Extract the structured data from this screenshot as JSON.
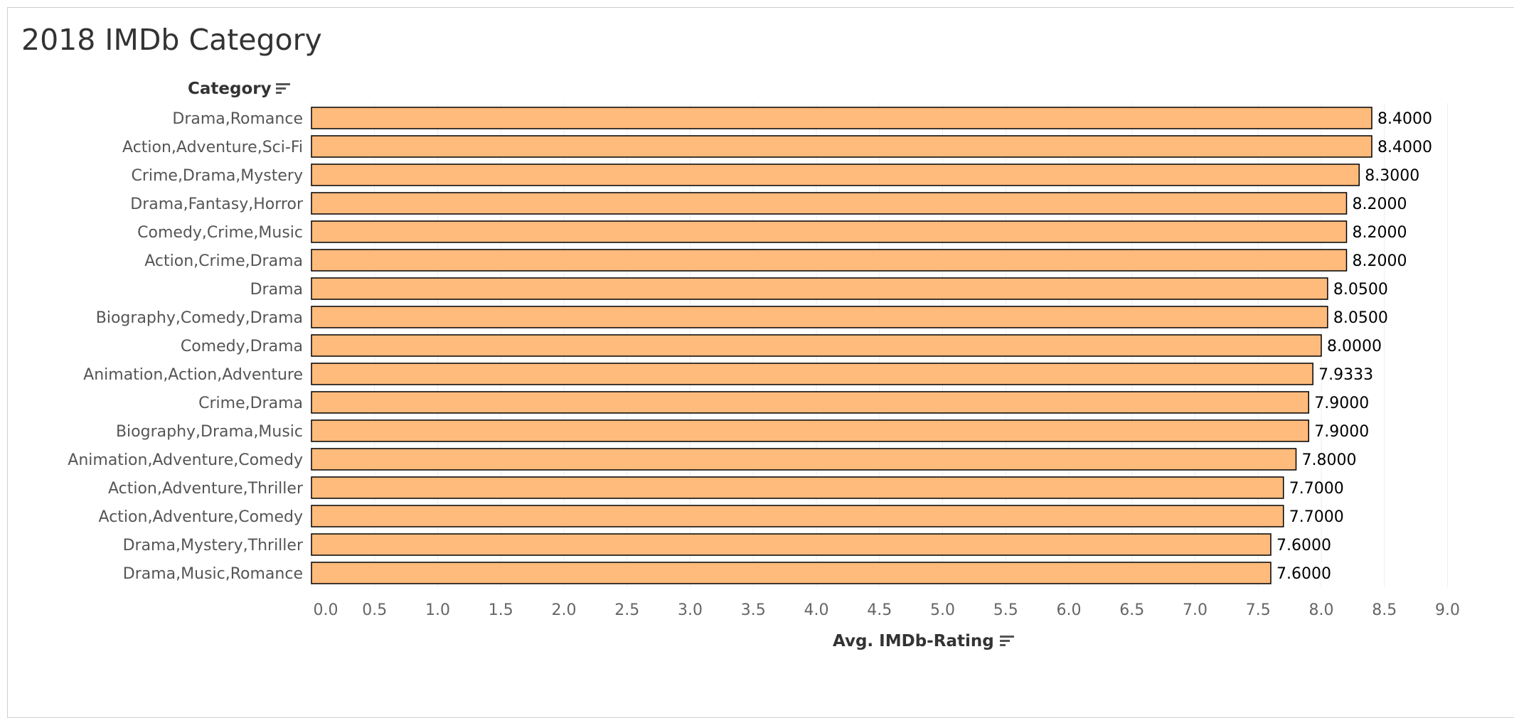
{
  "title": "2018 IMDb Category",
  "category_header": "Category",
  "x_axis_label": "Avg. IMDb-Rating",
  "colors": {
    "bar_fill": "#FFBB7C",
    "bar_stroke": "#000000",
    "grid": "#eeeeee"
  },
  "chart_data": {
    "type": "bar",
    "orientation": "horizontal",
    "title": "2018 IMDb Category",
    "ylabel": "Category",
    "xlabel": "Avg. IMDb-Rating",
    "xlim": [
      0,
      9.0
    ],
    "xticks": [
      "0.0",
      "0.5",
      "1.0",
      "1.5",
      "2.0",
      "2.5",
      "3.0",
      "3.5",
      "4.0",
      "4.5",
      "5.0",
      "5.5",
      "6.0",
      "6.5",
      "7.0",
      "7.5",
      "8.0",
      "8.5",
      "9.0"
    ],
    "grid": true,
    "categories": [
      "Drama,Romance",
      "Action,Adventure,Sci-Fi",
      "Crime,Drama,Mystery",
      "Drama,Fantasy,Horror",
      "Comedy,Crime,Music",
      "Action,Crime,Drama",
      "Drama",
      "Biography,Comedy,Drama",
      "Comedy,Drama",
      "Animation,Action,Adventure",
      "Crime,Drama",
      "Biography,Drama,Music",
      "Animation,Adventure,Comedy",
      "Action,Adventure,Thriller",
      "Action,Adventure,Comedy",
      "Drama,Mystery,Thriller",
      "Drama,Music,Romance"
    ],
    "values": [
      8.4,
      8.4,
      8.3,
      8.2,
      8.2,
      8.2,
      8.05,
      8.05,
      8.0,
      7.9333,
      7.9,
      7.9,
      7.8,
      7.7,
      7.7,
      7.6,
      7.6
    ],
    "value_labels": [
      "8.4000",
      "8.4000",
      "8.3000",
      "8.2000",
      "8.2000",
      "8.2000",
      "8.0500",
      "8.0500",
      "8.0000",
      "7.9333",
      "7.9000",
      "7.9000",
      "7.8000",
      "7.7000",
      "7.7000",
      "7.6000",
      "7.6000"
    ]
  }
}
